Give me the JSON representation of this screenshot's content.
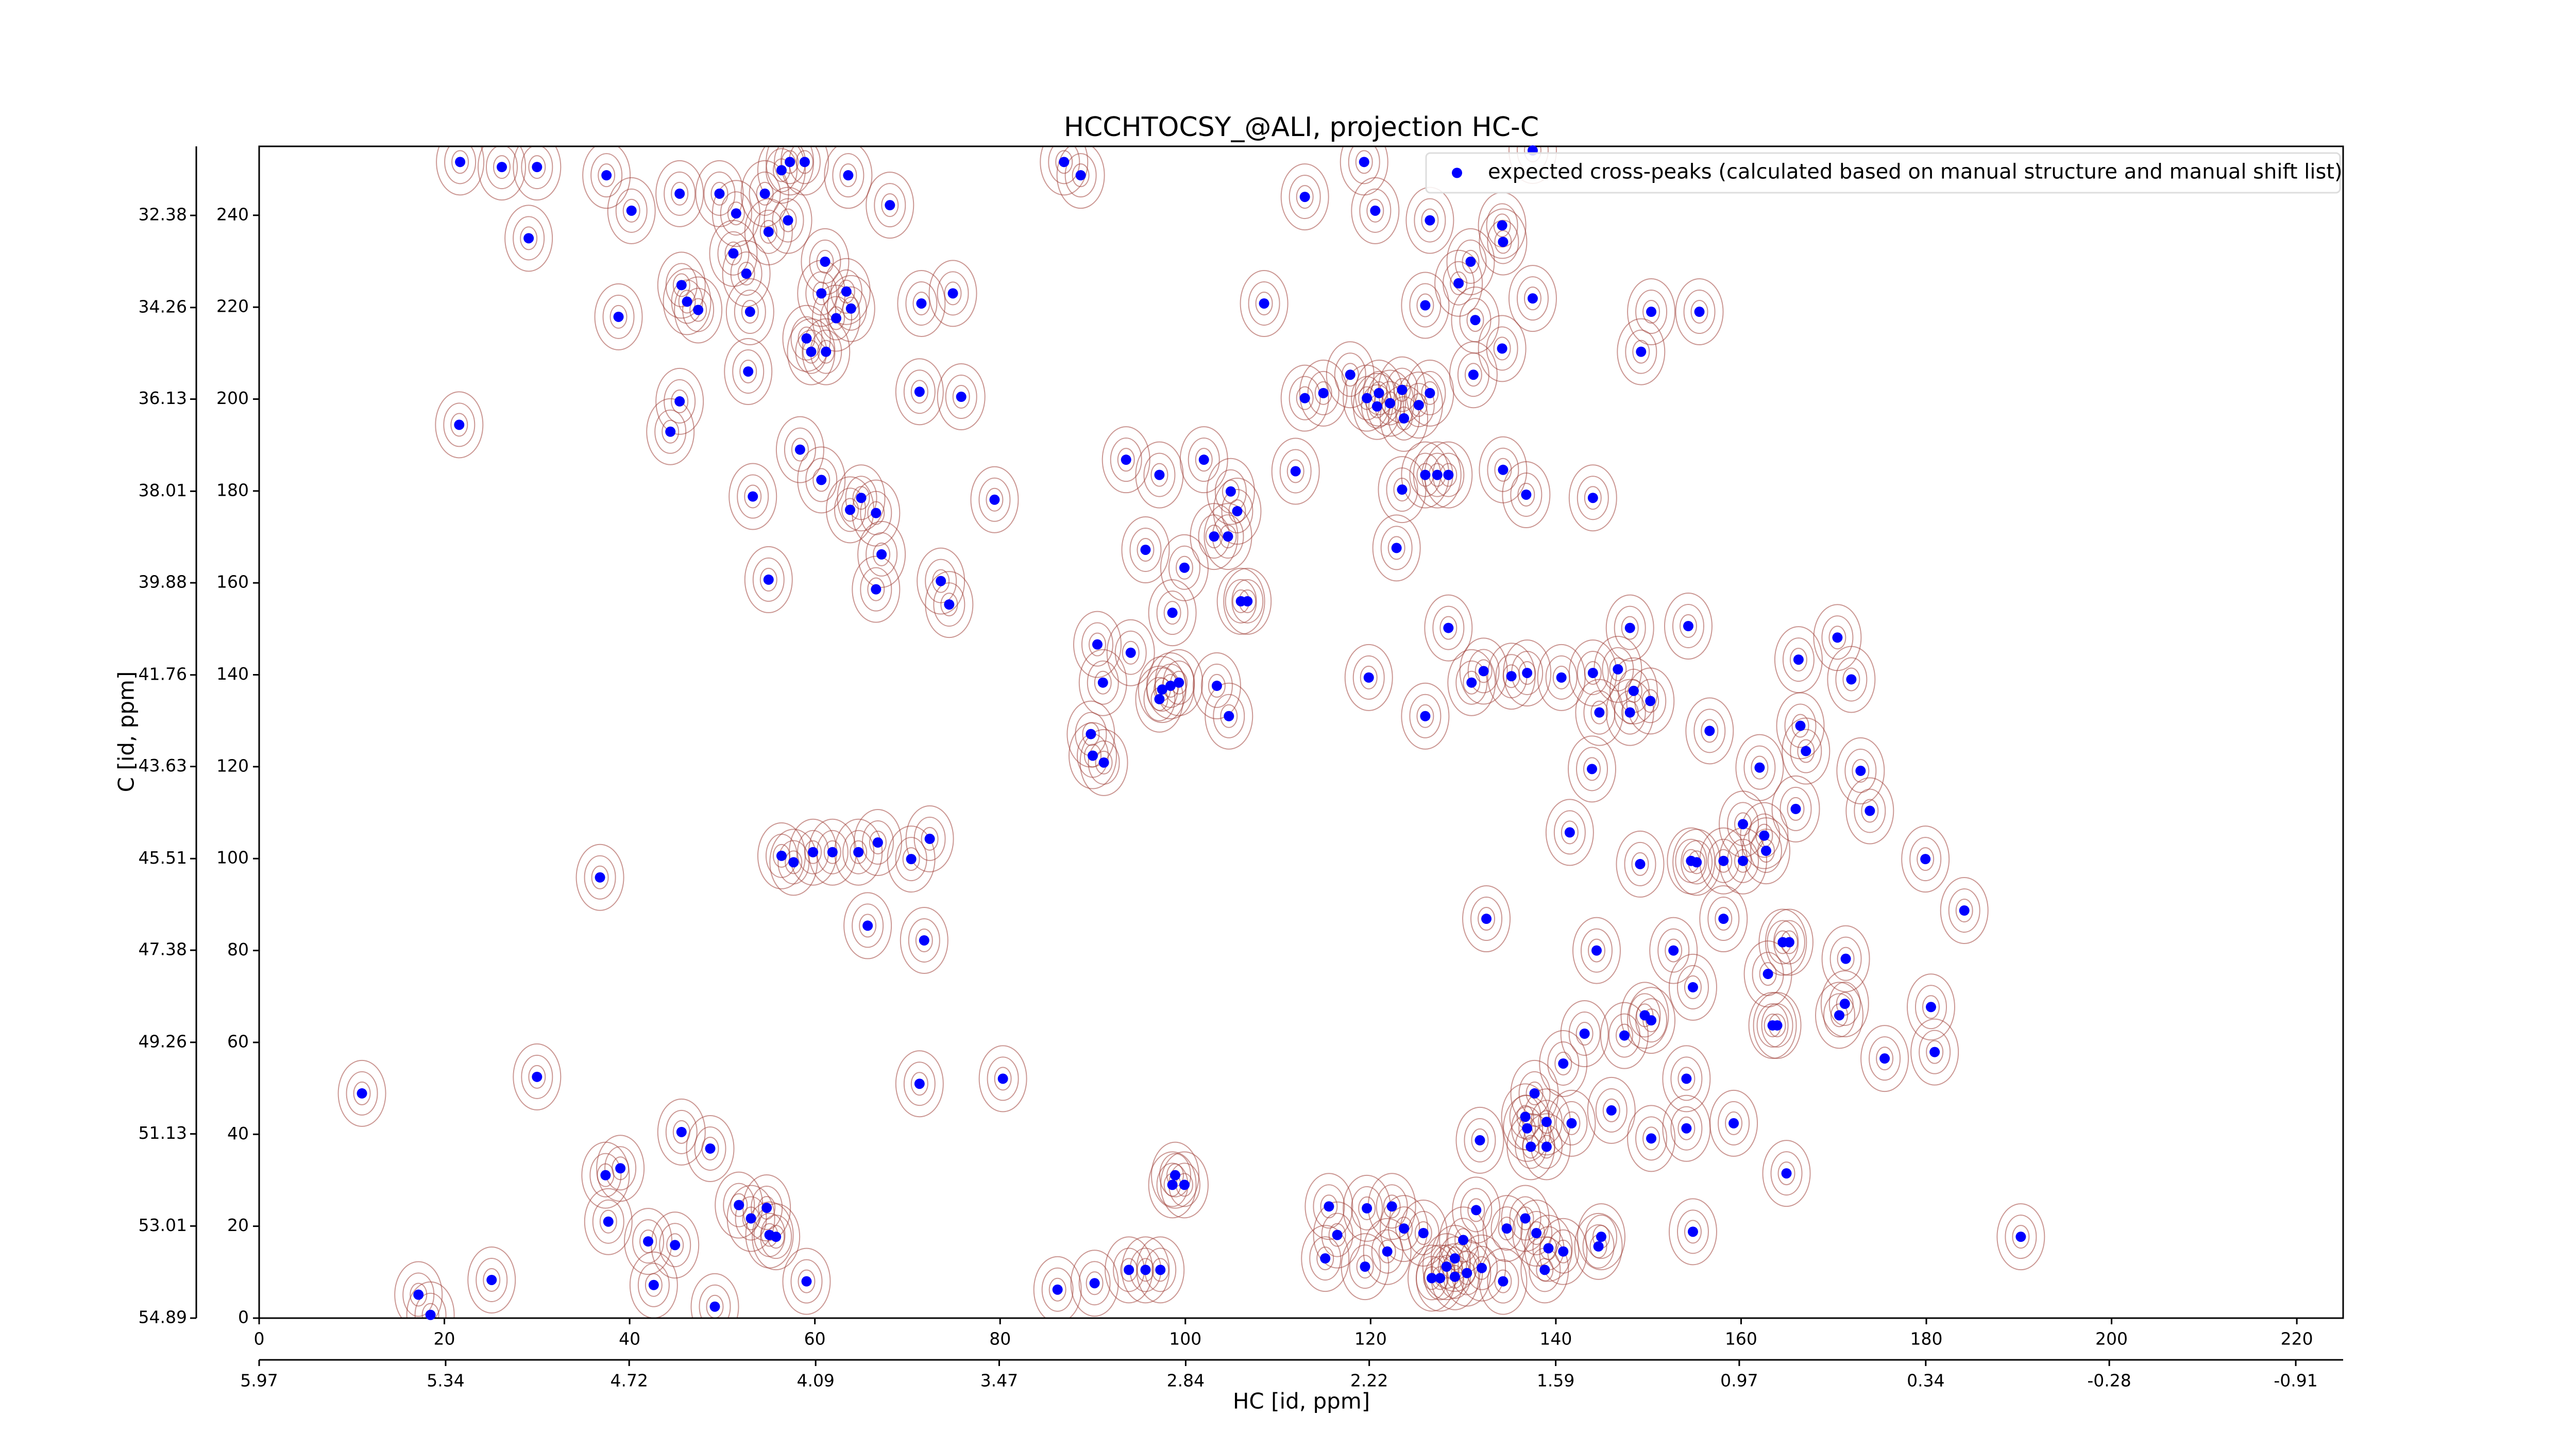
{
  "chart_data": {
    "type": "scatter",
    "title": "HCCHTOCSY_@ALI, projection HC-C",
    "x_label": "HC [id, ppm]",
    "y_label": "C [id, ppm]",
    "xlim": [
      0,
      225
    ],
    "ylim": [
      0,
      255
    ],
    "xticks": [
      0,
      20,
      40,
      60,
      80,
      100,
      120,
      140,
      160,
      180,
      200,
      220
    ],
    "yticks": [
      0,
      20,
      40,
      60,
      80,
      100,
      120,
      140,
      160,
      180,
      200,
      220,
      240
    ],
    "x2lim": [
      5.97,
      -1.07
    ],
    "x2ticks": [
      5.97,
      5.34,
      4.72,
      4.09,
      3.47,
      2.84,
      2.22,
      1.59,
      0.97,
      0.34,
      -0.28,
      -0.91
    ],
    "y2lim": [
      54.89,
      30.97
    ],
    "y2ticks": [
      54.89,
      53.01,
      51.13,
      49.26,
      47.38,
      45.51,
      43.63,
      41.76,
      39.88,
      38.01,
      36.13,
      34.26,
      32.38
    ],
    "legend": "upper right",
    "x": [
      21.7,
      26.2,
      30.0,
      37.5,
      40.2,
      45.4,
      49.7,
      51.5,
      54.6,
      57.3,
      58.9,
      56.4,
      63.6,
      68.1,
      55,
      57.1,
      51.2,
      61.1,
      29.1,
      52.6,
      45.6,
      46.2,
      47.4,
      38.8,
      53,
      60.7,
      63.4,
      63.9,
      62.3,
      59.1,
      59.6,
      61.2,
      71.5,
      74.9,
      52.8,
      71.3,
      75.8,
      45.4,
      21.6,
      44.4,
      58.4,
      60.7,
      53.3,
      65,
      63.8,
      66.6,
      67.2,
      79.4,
      55,
      66.6,
      73.6,
      74.5,
      86.9,
      88.7,
      112.9,
      119.3,
      120.5,
      126.4,
      130.8,
      134.2,
      134.3,
      137.5,
      137.5,
      125.9,
      129.5,
      131.3,
      134.2,
      150.3,
      155.5,
      149.2,
      108.5,
      114.9,
      112.9,
      117.8,
      119.6,
      120.9,
      122.1,
      120.7,
      123.4,
      125.2,
      126.4,
      123.6,
      131.1,
      93.6,
      102,
      97.2,
      104.9,
      105.6,
      111.9,
      123.4,
      125.9,
      127.2,
      128.4,
      134.3,
      136.8,
      144,
      103.1,
      104.6,
      95.7,
      122.8,
      99.9,
      106,
      106.7,
      98.6,
      90.5,
      94.1,
      91.1,
      97.5,
      98.4,
      99.3,
      97.2,
      103.4,
      104.7,
      89.8,
      90,
      91.2,
      119.8,
      125.9,
      128.4,
      170.4,
      166.2,
      166.4,
      171.9,
      154.3,
      148,
      130.9,
      132.2,
      135.2,
      136.9,
      140.6,
      144,
      146.7,
      144.7,
      148,
      148.4,
      150.2,
      143.9,
      156.6,
      167,
      162,
      172.9,
      160.2,
      162.5,
      162.7,
      173.9,
      165.9,
      141.5,
      149.1,
      154.6,
      155.2,
      158.1,
      160.2,
      179.9,
      184.1,
      158.1,
      164.5,
      165.2,
      162.9,
      171.3,
      152.7,
      144.4,
      132.5,
      154.8,
      149.6,
      150.3,
      147.4,
      143.1,
      140.8,
      171.2,
      170.6,
      180.5,
      163.9,
      163.4,
      175.5,
      180.9,
      154.1,
      137.7,
      146,
      136.7,
      139,
      131.8,
      136.9,
      137.3,
      139,
      141.7,
      150.3,
      159.2,
      164.9,
      154.1,
      154.8,
      190.2,
      131.4,
      134.7,
      136.7,
      137.9,
      139.2,
      140.8,
      144.6,
      144.9,
      138.8,
      130,
      129.1,
      128.2,
      127.5,
      129.1,
      130.4,
      126.6,
      125.7,
      123.6,
      121.8,
      122.3,
      115.5,
      119.6,
      119.4,
      115.1,
      116.4,
      132,
      134.3,
      86.2,
      90.2,
      93.9,
      95.7,
      97.3,
      98.9,
      99.9,
      98.6,
      17.2,
      18.5,
      25.1,
      37.4,
      39,
      37.7,
      42.6,
      42,
      44.9,
      45.6,
      48.7,
      49.2,
      51.8,
      53.1,
      54.8,
      55.1,
      55.8,
      59.1,
      11.1,
      30,
      36.8,
      71.3,
      80.3,
      56.4,
      57.7,
      61.9,
      64.7,
      66.8,
      72.4,
      70.4,
      59.8,
      65.7,
      71.8
    ],
    "series": [
      {
        "name": "expected cross-peaks (calculated based on manual structure and manual shift list)",
        "color": "#0000ff",
        "values": [
          251.6,
          250.5,
          250.5,
          248.7,
          241,
          244.7,
          244.7,
          240.4,
          244.7,
          251.6,
          251.6,
          249.8,
          248.7,
          242.2,
          236.4,
          238.9,
          231.7,
          229.9,
          235,
          227.3,
          224.8,
          221.2,
          219.4,
          217.9,
          219,
          223,
          223.4,
          219.7,
          217.6,
          213.2,
          210.3,
          210.3,
          220.8,
          223,
          206,
          201.6,
          200.5,
          199.5,
          194.4,
          192.9,
          189,
          182.4,
          178.8,
          178.5,
          175.9,
          175.2,
          166.2,
          178.1,
          160.7,
          158.6,
          160.4,
          155.3,
          251.6,
          248.7,
          244,
          251.6,
          241,
          238.9,
          229.9,
          237.8,
          234.2,
          254.1,
          221.9,
          220.4,
          225.2,
          217.2,
          211,
          219,
          219,
          210.3,
          220.8,
          201.3,
          200.2,
          205.3,
          200.2,
          201.3,
          199.1,
          198.4,
          202,
          198.7,
          201.3,
          195.8,
          205.3,
          186.8,
          186.8,
          183.5,
          179.9,
          175.6,
          184.3,
          180.3,
          183.5,
          183.5,
          183.5,
          184.6,
          179.2,
          178.5,
          170.1,
          170.1,
          167.2,
          167.6,
          163.3,
          156,
          156,
          153.5,
          146.6,
          144.8,
          138.3,
          136.8,
          137.6,
          138.3,
          134.7,
          137.6,
          131,
          127.1,
          122.4,
          120.9,
          139.4,
          131,
          150.2,
          148.1,
          143.3,
          128.9,
          139,
          150.6,
          150.2,
          138.3,
          140.8,
          139.7,
          140.4,
          139.4,
          140.4,
          141.2,
          131.8,
          131.8,
          136.5,
          134.3,
          119.5,
          127.8,
          123.4,
          119.8,
          119.1,
          107.5,
          105,
          101.7,
          110.4,
          110.8,
          105.7,
          98.8,
          99.5,
          99.2,
          99.5,
          99.5,
          99.9,
          88.7,
          86.9,
          81.8,
          81.8,
          74.9,
          78.2,
          80,
          80,
          86.9,
          72,
          65.9,
          64.8,
          61.5,
          61.9,
          55.4,
          68.4,
          65.9,
          67.7,
          63.7,
          63.7,
          56.5,
          57.9,
          52.1,
          48.9,
          45.2,
          43.8,
          42.7,
          38.7,
          41.3,
          37.3,
          37.3,
          42.4,
          39.1,
          42.4,
          31.5,
          41.3,
          18.8,
          17.7,
          23.5,
          19.5,
          21.7,
          18.5,
          15.2,
          14.5,
          15.6,
          17.7,
          10.5,
          17,
          13,
          11.2,
          8.7,
          9,
          9.8,
          8.7,
          18.5,
          19.5,
          14.5,
          24.3,
          24.3,
          23.9,
          11.2,
          13,
          18.1,
          10.9,
          8,
          6.2,
          7.6,
          10.5,
          10.5,
          10.5,
          31.1,
          29,
          29,
          5.1,
          0.7,
          8.3,
          31.1,
          32.6,
          21,
          7.2,
          16.7,
          15.9,
          40.5,
          36.9,
          2.5,
          24.6,
          21.7,
          24,
          18.1,
          17.7,
          8,
          48.9,
          52.5,
          95.9,
          51,
          52.1,
          100.6,
          99.2,
          101.4,
          101.4,
          103.5,
          104.3,
          99.9,
          101.4,
          85.4,
          82.2
        ]
      }
    ]
  }
}
